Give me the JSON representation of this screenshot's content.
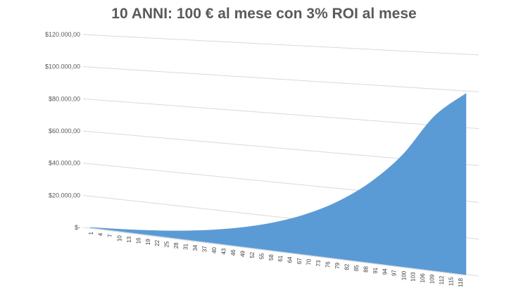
{
  "chart_data": {
    "type": "area",
    "title": "10 ANNI: 100 € al mese con 3% ROI al mese",
    "xlabel": "",
    "ylabel": "",
    "x_range": [
      1,
      120
    ],
    "ylim": [
      0,
      120000
    ],
    "y_ticks": [
      0,
      20000,
      40000,
      60000,
      80000,
      100000,
      120000
    ],
    "y_tick_labels": [
      "$-",
      "$20.000,00",
      "$40.000,00",
      "$60.000,00",
      "$80.000,00",
      "$100.000,00",
      "$120.000,00"
    ],
    "x_tick_labels": [
      "1",
      "4",
      "7",
      "10",
      "13",
      "16",
      "19",
      "22",
      "25",
      "28",
      "31",
      "34",
      "37",
      "40",
      "43",
      "46",
      "49",
      "52",
      "55",
      "58",
      "61",
      "64",
      "67",
      "70",
      "73",
      "76",
      "79",
      "82",
      "85",
      "88",
      "91",
      "94",
      "97",
      "100",
      "103",
      "106",
      "109",
      "112",
      "115",
      "118"
    ],
    "grid": true,
    "legend": "none",
    "perspective": "3d",
    "series": [
      {
        "color": "#5b9bd5",
        "x": [
          1,
          10,
          20,
          30,
          40,
          50,
          60,
          70,
          80,
          90,
          100,
          110,
          120
        ],
        "values": [
          103,
          1181,
          2768,
          4901,
          7768,
          11621,
          16800,
          23760,
          33114,
          45686,
          62582,
          85289,
          99000
        ]
      }
    ]
  }
}
